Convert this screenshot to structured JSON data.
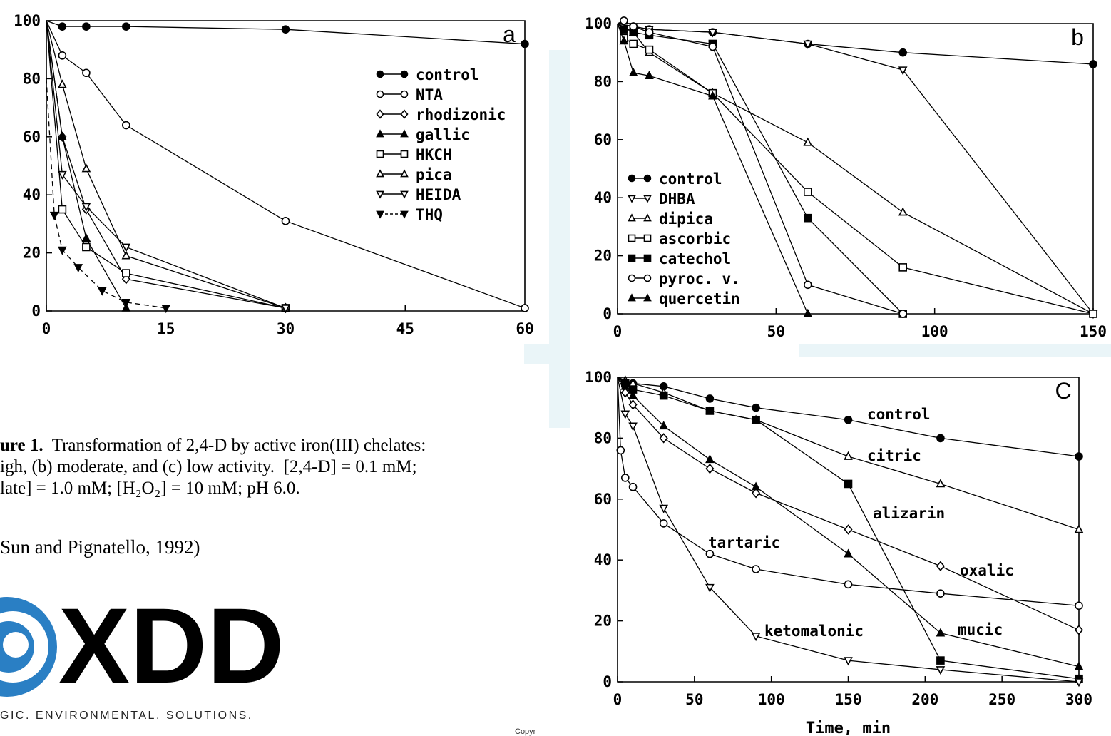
{
  "caption": {
    "label": "ure 1.",
    "line1": "  Transformation of 2,4-D by active iron(III) chelates:",
    "line2": "igh, (b) moderate, and (c) low activity.  [2,4-D] = 0.1 mM;",
    "line3": "late] = 1.0 mM; [H₂O₂] = 10 mM; pH 6.0."
  },
  "citation": "Sun and Pignatello, 1992)",
  "logo": {
    "text": "XDD",
    "tagline": "GIC. ENVIRONMENTAL. SOLUTIONS.",
    "brand_color": "#e08a1e",
    "swirl_color": "#2a7fc4"
  },
  "footer_text": "Copyr",
  "chart_data": [
    {
      "type": "line",
      "panel_label": "a",
      "xlim": [
        0,
        60
      ],
      "ylim": [
        0,
        100
      ],
      "xticks": [
        0,
        15,
        30,
        45,
        60
      ],
      "yticks": [
        0,
        20,
        40,
        60,
        80,
        100
      ],
      "series": [
        {
          "name": "control",
          "marker": "circle",
          "filled": true,
          "dashed": false,
          "points": [
            [
              0,
              100
            ],
            [
              2,
              98
            ],
            [
              5,
              98
            ],
            [
              10,
              98
            ],
            [
              30,
              97
            ],
            [
              60,
              92
            ]
          ]
        },
        {
          "name": "NTA",
          "marker": "circle",
          "filled": false,
          "dashed": false,
          "points": [
            [
              0,
              100
            ],
            [
              2,
              88
            ],
            [
              5,
              82
            ],
            [
              10,
              64
            ],
            [
              30,
              31
            ],
            [
              60,
              1
            ]
          ]
        },
        {
          "name": "rhodizonic",
          "marker": "diamond",
          "filled": false,
          "dashed": false,
          "points": [
            [
              0,
              100
            ],
            [
              2,
              60
            ],
            [
              5,
              35
            ],
            [
              10,
              11
            ],
            [
              30,
              1
            ]
          ]
        },
        {
          "name": "gallic",
          "marker": "triangle-up",
          "filled": true,
          "dashed": false,
          "points": [
            [
              0,
              100
            ],
            [
              2,
              60
            ],
            [
              5,
              25
            ],
            [
              10,
              1
            ]
          ]
        },
        {
          "name": "HKCH",
          "marker": "square",
          "filled": false,
          "dashed": false,
          "points": [
            [
              0,
              100
            ],
            [
              2,
              35
            ],
            [
              5,
              22
            ],
            [
              10,
              13
            ],
            [
              30,
              1
            ]
          ]
        },
        {
          "name": "pica",
          "marker": "triangle-up",
          "filled": false,
          "dashed": false,
          "points": [
            [
              0,
              100
            ],
            [
              2,
              78
            ],
            [
              5,
              49
            ],
            [
              10,
              19
            ],
            [
              30,
              1
            ]
          ]
        },
        {
          "name": "HEIDA",
          "marker": "triangle-down",
          "filled": false,
          "dashed": false,
          "points": [
            [
              0,
              100
            ],
            [
              2,
              47
            ],
            [
              5,
              36
            ],
            [
              10,
              22
            ],
            [
              30,
              1
            ]
          ]
        },
        {
          "name": "THQ",
          "marker": "triangle-down",
          "filled": true,
          "dashed": true,
          "points": [
            [
              0,
              80
            ],
            [
              1,
              33
            ],
            [
              2,
              21
            ],
            [
              4,
              15
            ],
            [
              7,
              7
            ],
            [
              10,
              3
            ],
            [
              15,
              1
            ]
          ]
        }
      ]
    },
    {
      "type": "line",
      "panel_label": "b",
      "xlim": [
        0,
        150
      ],
      "ylim": [
        0,
        100
      ],
      "xticks": [
        0,
        50,
        100,
        150
      ],
      "yticks": [
        0,
        20,
        40,
        60,
        80,
        100
      ],
      "series": [
        {
          "name": "control",
          "marker": "circle",
          "filled": true,
          "points": [
            [
              0,
              100
            ],
            [
              5,
              99
            ],
            [
              10,
              98
            ],
            [
              30,
              97
            ],
            [
              60,
              93
            ],
            [
              90,
              90
            ],
            [
              150,
              86
            ]
          ]
        },
        {
          "name": "DHBA",
          "marker": "triangle-down",
          "filled": false,
          "points": [
            [
              0,
              100
            ],
            [
              5,
              99
            ],
            [
              10,
              98
            ],
            [
              30,
              97
            ],
            [
              60,
              93
            ],
            [
              90,
              84
            ],
            [
              150,
              0
            ]
          ]
        },
        {
          "name": "dipica",
          "marker": "triangle-up",
          "filled": false,
          "points": [
            [
              0,
              100
            ],
            [
              5,
              97
            ],
            [
              10,
              90
            ],
            [
              30,
              76
            ],
            [
              60,
              59
            ],
            [
              90,
              35
            ],
            [
              150,
              0
            ]
          ]
        },
        {
          "name": "ascorbic",
          "marker": "square",
          "filled": false,
          "points": [
            [
              0,
              100
            ],
            [
              2,
              95
            ],
            [
              5,
              93
            ],
            [
              10,
              91
            ],
            [
              30,
              76
            ],
            [
              60,
              42
            ],
            [
              90,
              16
            ],
            [
              150,
              0
            ]
          ]
        },
        {
          "name": "catechol",
          "marker": "square",
          "filled": true,
          "points": [
            [
              0,
              100
            ],
            [
              2,
              98
            ],
            [
              5,
              97
            ],
            [
              10,
              96
            ],
            [
              30,
              93
            ],
            [
              60,
              33
            ],
            [
              90,
              0
            ]
          ]
        },
        {
          "name": "pyroc. v.",
          "marker": "circle",
          "filled": false,
          "points": [
            [
              0,
              100
            ],
            [
              2,
              101
            ],
            [
              5,
              99
            ],
            [
              10,
              97
            ],
            [
              30,
              92
            ],
            [
              60,
              10
            ],
            [
              90,
              0
            ]
          ]
        },
        {
          "name": "quercetin",
          "marker": "triangle-up",
          "filled": true,
          "points": [
            [
              0,
              100
            ],
            [
              2,
              94
            ],
            [
              5,
              83
            ],
            [
              10,
              82
            ],
            [
              30,
              75
            ],
            [
              60,
              0
            ]
          ]
        }
      ]
    },
    {
      "type": "line",
      "panel_label": "C",
      "xlabel": "Time, min",
      "xlim": [
        0,
        300
      ],
      "ylim": [
        0,
        100
      ],
      "xticks": [
        0,
        50,
        100,
        150,
        200,
        250,
        300
      ],
      "yticks": [
        0,
        20,
        40,
        60,
        80,
        100
      ],
      "series": [
        {
          "name": "control",
          "label": "control",
          "marker": "circle",
          "filled": true,
          "points": [
            [
              0,
              100
            ],
            [
              10,
              98
            ],
            [
              30,
              97
            ],
            [
              60,
              93
            ],
            [
              90,
              90
            ],
            [
              150,
              86
            ],
            [
              210,
              80
            ],
            [
              300,
              74
            ]
          ]
        },
        {
          "name": "citric",
          "label": "citric",
          "marker": "triangle-up",
          "filled": false,
          "points": [
            [
              0,
              100
            ],
            [
              5,
              99
            ],
            [
              10,
              98
            ],
            [
              30,
              95
            ],
            [
              60,
              89
            ],
            [
              90,
              86
            ],
            [
              150,
              74
            ],
            [
              210,
              65
            ],
            [
              300,
              50
            ]
          ]
        },
        {
          "name": "alizarin",
          "label": "alizarin",
          "marker": "square",
          "filled": true,
          "points": [
            [
              0,
              100
            ],
            [
              5,
              98
            ],
            [
              10,
              96
            ],
            [
              30,
              94
            ],
            [
              60,
              89
            ],
            [
              90,
              86
            ],
            [
              150,
              65
            ],
            [
              210,
              7
            ],
            [
              300,
              1
            ]
          ]
        },
        {
          "name": "oxalic",
          "label": "oxalic",
          "marker": "diamond",
          "filled": false,
          "points": [
            [
              0,
              100
            ],
            [
              5,
              95
            ],
            [
              10,
              91
            ],
            [
              30,
              80
            ],
            [
              60,
              70
            ],
            [
              90,
              62
            ],
            [
              150,
              50
            ],
            [
              210,
              38
            ],
            [
              300,
              17
            ]
          ]
        },
        {
          "name": "mucic",
          "label": "mucic",
          "marker": "triangle-up",
          "filled": true,
          "points": [
            [
              0,
              100
            ],
            [
              5,
              97
            ],
            [
              10,
              94
            ],
            [
              30,
              84
            ],
            [
              60,
              73
            ],
            [
              90,
              64
            ],
            [
              150,
              42
            ],
            [
              210,
              16
            ],
            [
              300,
              5
            ]
          ]
        },
        {
          "name": "tartaric",
          "label": "tartaric",
          "marker": "circle",
          "filled": false,
          "points": [
            [
              0,
              100
            ],
            [
              2,
              76
            ],
            [
              5,
              67
            ],
            [
              10,
              64
            ],
            [
              30,
              52
            ],
            [
              60,
              42
            ],
            [
              90,
              37
            ],
            [
              150,
              32
            ],
            [
              210,
              29
            ],
            [
              300,
              25
            ]
          ]
        },
        {
          "name": "ketomalonic",
          "label": "ketomalonic",
          "marker": "triangle-down",
          "filled": false,
          "points": [
            [
              0,
              100
            ],
            [
              5,
              88
            ],
            [
              10,
              84
            ],
            [
              30,
              57
            ],
            [
              60,
              31
            ],
            [
              90,
              15
            ],
            [
              150,
              7
            ],
            [
              210,
              4
            ],
            [
              300,
              0
            ]
          ]
        }
      ]
    }
  ]
}
